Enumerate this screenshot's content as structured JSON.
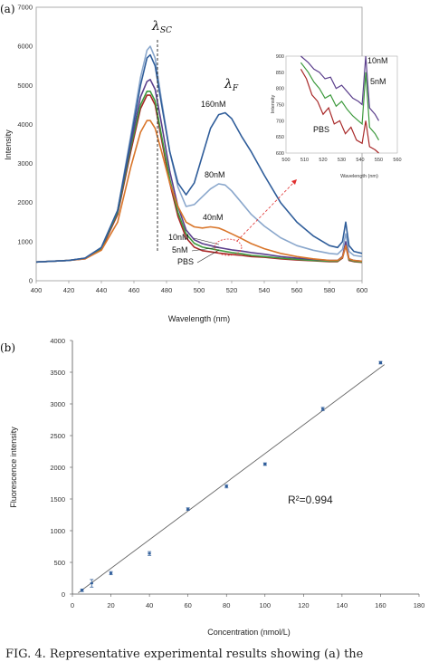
{
  "caption": "FIG. 4. Representative experimental results showing (a) the",
  "chart_data": [
    {
      "type": "line",
      "panel_label": "(a)",
      "xlabel": "Wavelength (nm)",
      "ylabel": "Intensity",
      "xlim": [
        400,
        600
      ],
      "ylim": [
        0,
        7000
      ],
      "x_ticks": [
        400,
        420,
        440,
        460,
        480,
        500,
        520,
        540,
        560,
        580,
        600
      ],
      "y_ticks": [
        0,
        1000,
        2000,
        3000,
        4000,
        5000,
        6000,
        7000
      ],
      "y_tick_labels": [
        "0",
        "1000",
        "2000",
        "3000",
        "4000",
        "5000",
        "6000",
        "7000"
      ],
      "peak_labels": [
        {
          "symbol": "λ",
          "sub": "SC",
          "x": 470
        },
        {
          "symbol": "λ",
          "sub": "F",
          "x": 515
        }
      ],
      "series": [
        {
          "name": "160nM",
          "color": "#2f5d9a",
          "x": [
            400,
            410,
            420,
            430,
            440,
            450,
            458,
            464,
            468,
            470,
            473,
            477,
            482,
            487,
            492,
            497,
            502,
            507,
            512,
            516,
            520,
            526,
            532,
            540,
            550,
            560,
            570,
            580,
            585,
            588,
            590,
            592,
            595,
            600
          ],
          "y": [
            480,
            500,
            520,
            580,
            850,
            1800,
            3600,
            5000,
            5700,
            5780,
            5500,
            4500,
            3300,
            2500,
            2200,
            2500,
            3200,
            3900,
            4250,
            4300,
            4150,
            3700,
            3300,
            2700,
            2000,
            1500,
            1150,
            900,
            850,
            1000,
            1500,
            900,
            750,
            700
          ]
        },
        {
          "name": "80nM",
          "color": "#8aa7cc",
          "x": [
            400,
            410,
            420,
            430,
            440,
            450,
            458,
            464,
            468,
            470,
            473,
            477,
            482,
            487,
            492,
            497,
            502,
            507,
            512,
            516,
            520,
            526,
            532,
            540,
            550,
            560,
            570,
            580,
            585,
            588,
            590,
            592,
            595,
            600
          ],
          "y": [
            480,
            500,
            520,
            580,
            850,
            1800,
            3700,
            5200,
            5900,
            6000,
            5700,
            4600,
            3300,
            2400,
            1900,
            1950,
            2150,
            2350,
            2480,
            2450,
            2300,
            2000,
            1700,
            1400,
            1100,
            900,
            780,
            700,
            680,
            800,
            1200,
            750,
            650,
            620
          ]
        },
        {
          "name": "40nM",
          "color": "#d9762b",
          "x": [
            400,
            410,
            420,
            430,
            440,
            450,
            458,
            464,
            468,
            470,
            473,
            477,
            482,
            487,
            492,
            497,
            502,
            507,
            512,
            516,
            520,
            526,
            532,
            540,
            550,
            560,
            570,
            580,
            585,
            588,
            590,
            592,
            595,
            600
          ],
          "y": [
            480,
            500,
            520,
            560,
            780,
            1500,
            2900,
            3800,
            4100,
            4100,
            3900,
            3300,
            2500,
            1900,
            1500,
            1380,
            1350,
            1380,
            1350,
            1280,
            1200,
            1080,
            950,
            820,
            700,
            620,
            560,
            520,
            520,
            600,
            900,
            560,
            520,
            500
          ]
        },
        {
          "name": "10nM",
          "color": "#5b3f8c",
          "x": [
            400,
            410,
            420,
            430,
            440,
            450,
            458,
            464,
            468,
            470,
            473,
            477,
            482,
            487,
            492,
            497,
            502,
            507,
            512,
            516,
            520,
            526,
            532,
            540,
            550,
            560,
            570,
            580,
            585,
            588,
            590,
            592,
            595,
            600
          ],
          "y": [
            480,
            500,
            520,
            580,
            850,
            1800,
            3500,
            4700,
            5100,
            5150,
            4900,
            4000,
            2800,
            1900,
            1300,
            1050,
            950,
            900,
            850,
            820,
            790,
            760,
            720,
            680,
            620,
            580,
            550,
            520,
            520,
            620,
            1000,
            560,
            520,
            500
          ]
        },
        {
          "name": "5nM",
          "color": "#3d9a3d",
          "x": [
            400,
            410,
            420,
            430,
            440,
            450,
            458,
            464,
            468,
            470,
            473,
            477,
            482,
            487,
            492,
            497,
            502,
            507,
            512,
            516,
            520,
            526,
            532,
            540,
            550,
            560,
            570,
            580,
            585,
            588,
            590,
            592,
            595,
            600
          ],
          "y": [
            480,
            500,
            520,
            570,
            830,
            1750,
            3400,
            4500,
            4850,
            4850,
            4600,
            3700,
            2600,
            1750,
            1200,
            960,
            860,
            820,
            780,
            750,
            720,
            690,
            650,
            620,
            580,
            550,
            520,
            500,
            500,
            600,
            950,
            540,
            500,
            480
          ]
        },
        {
          "name": "PBS",
          "color": "#a82828",
          "x": [
            400,
            410,
            420,
            430,
            440,
            450,
            458,
            464,
            468,
            470,
            473,
            477,
            482,
            487,
            492,
            497,
            502,
            507,
            512,
            516,
            520,
            526,
            532,
            540,
            550,
            560,
            570,
            580,
            585,
            588,
            590,
            592,
            595,
            600
          ],
          "y": [
            480,
            500,
            520,
            560,
            800,
            1700,
            3300,
            4400,
            4750,
            4750,
            4500,
            3600,
            2500,
            1650,
            1100,
            860,
            770,
            740,
            710,
            690,
            670,
            650,
            620,
            600,
            560,
            530,
            510,
            490,
            490,
            580,
            900,
            520,
            490,
            470
          ]
        }
      ],
      "legend": "labels-on-curves",
      "inset": {
        "xlabel": "Wavelength (nm)",
        "ylabel": "Intensity",
        "xlim": [
          500,
          560
        ],
        "ylim": [
          600,
          900
        ],
        "x_ticks": [
          500,
          510,
          520,
          530,
          540,
          550,
          560
        ],
        "y_ticks": [
          600,
          650,
          700,
          750,
          800,
          850,
          900
        ],
        "series": [
          {
            "name": "10nM",
            "color": "#5b3f8c",
            "x": [
              508,
              512,
              515,
              518,
              521,
              524,
              527,
              530,
              533,
              536,
              539,
              541,
              543,
              545,
              548,
              550
            ],
            "y": [
              900,
              880,
              860,
              850,
              830,
              835,
              800,
              810,
              790,
              770,
              760,
              750,
              900,
              740,
              720,
              700
            ]
          },
          {
            "name": "5nM",
            "color": "#3d9a3d",
            "x": [
              508,
              512,
              515,
              518,
              521,
              524,
              527,
              530,
              533,
              536,
              539,
              541,
              543,
              545,
              548,
              550
            ],
            "y": [
              880,
              850,
              820,
              800,
              770,
              780,
              745,
              760,
              735,
              715,
              700,
              690,
              850,
              680,
              660,
              640
            ]
          },
          {
            "name": "PBS",
            "color": "#a82828",
            "x": [
              508,
              511,
              514,
              517,
              520,
              523,
              526,
              529,
              532,
              535,
              538,
              541,
              543,
              545,
              548,
              550
            ],
            "y": [
              860,
              830,
              780,
              760,
              720,
              740,
              690,
              700,
              660,
              680,
              640,
              630,
              700,
              620,
              610,
              600
            ]
          }
        ]
      }
    },
    {
      "type": "scatter",
      "panel_label": "(b)",
      "xlabel": "Concentration (nmol/L)",
      "ylabel": "Fluorescence intensity",
      "xlim": [
        0,
        180
      ],
      "ylim": [
        0,
        4000
      ],
      "x_ticks": [
        0,
        20,
        40,
        60,
        80,
        100,
        120,
        140,
        160,
        180
      ],
      "x_tick_labels": [
        "0",
        "20",
        "40",
        "60",
        "80",
        "100",
        "120",
        "140",
        "160",
        "180"
      ],
      "y_ticks": [
        0,
        500,
        1000,
        1500,
        2000,
        2500,
        3000,
        3500,
        4000
      ],
      "annotation": "R²=0.994",
      "points": {
        "x": [
          5,
          10,
          20,
          40,
          60,
          80,
          100,
          130,
          160
        ],
        "y": [
          60,
          170,
          330,
          640,
          1340,
          1700,
          2050,
          2920,
          3650
        ],
        "err": [
          20,
          60,
          25,
          30,
          20,
          25,
          20,
          25,
          20
        ]
      },
      "fit_line": {
        "x": [
          3,
          162
        ],
        "y": [
          20,
          3620
        ]
      }
    }
  ]
}
